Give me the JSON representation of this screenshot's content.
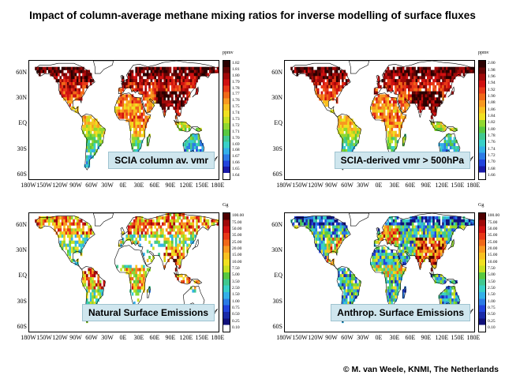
{
  "title": "Impact of column-average methane mixing ratios for inverse modelling of surface fluxes",
  "credit": "© M. van Weele, KNMI, The Netherlands",
  "lat_labels": [
    "60N",
    "30N",
    "EQ",
    "30S",
    "60S"
  ],
  "lon_labels": [
    "180W",
    "150W",
    "120W",
    "90W",
    "60W",
    "30W",
    "0E",
    "30E",
    "60E",
    "90E",
    "120E",
    "150E",
    "180E"
  ],
  "panels": [
    {
      "label": "SCIA column av. vmr",
      "unit": "ppmv",
      "ticks": [
        "1.82",
        "1.81",
        "1.80",
        "1.79",
        "1.78",
        "1.77",
        "1.76",
        "1.75",
        "1.74",
        "1.73",
        "1.72",
        "1.71",
        "1.70",
        "1.69",
        "1.68",
        "1.67",
        "1.66",
        "1.65",
        "1.64"
      ],
      "colormap": "vmr",
      "coverage": "satellite"
    },
    {
      "label": "SCIA-derived vmr > 500hPa",
      "unit": "ppmv",
      "ticks": [
        "2.00",
        "1.98",
        "1.96",
        "1.94",
        "1.92",
        "1.90",
        "1.88",
        "1.86",
        "1.84",
        "1.82",
        "1.80",
        "1.78",
        "1.76",
        "1.74",
        "1.72",
        "1.70",
        "1.68",
        "1.66"
      ],
      "colormap": "vmr",
      "coverage": "satellite"
    },
    {
      "label": "Natural Surface Emissions",
      "unit": "Gg",
      "ticks": [
        "100.00",
        "75.00",
        "50.00",
        "35.00",
        "25.00",
        "20.00",
        "15.00",
        "10.00",
        "7.50",
        "5.00",
        "3.50",
        "2.50",
        "1.50",
        "1.00",
        "0.75",
        "0.50",
        "0.25",
        "0.10"
      ],
      "colormap": "emis",
      "coverage": "natural"
    },
    {
      "label": "Anthrop. Surface Emissions",
      "unit": "Gg",
      "ticks": [
        "100.00",
        "75.00",
        "50.00",
        "35.00",
        "25.00",
        "20.00",
        "15.00",
        "10.00",
        "7.50",
        "5.00",
        "3.50",
        "2.50",
        "1.50",
        "1.00",
        "0.75",
        "0.50",
        "0.25",
        "0.10"
      ],
      "colormap": "emis",
      "coverage": "anthrop"
    }
  ]
}
